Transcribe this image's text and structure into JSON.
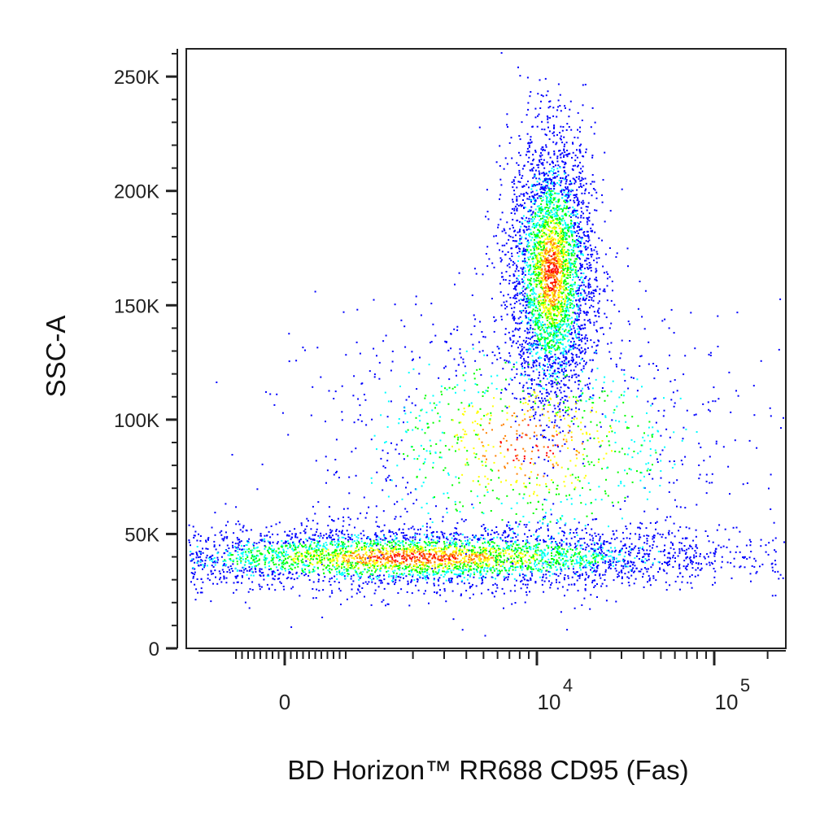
{
  "chart_data": {
    "type": "scatter",
    "title": "",
    "xlabel": "BD Horizon™ RR688 CD95 (Fas)",
    "ylabel": "SSC-A",
    "xscale": "biexponential",
    "ylim": [
      0,
      262144
    ],
    "yticks": [
      {
        "value": 0,
        "label": "0"
      },
      {
        "value": 50000,
        "label": "50K"
      },
      {
        "value": 100000,
        "label": "100K"
      },
      {
        "value": 150000,
        "label": "150K"
      },
      {
        "value": 200000,
        "label": "200K"
      },
      {
        "value": 250000,
        "label": "250K"
      }
    ],
    "xticks": [
      {
        "value": 0,
        "base": "0",
        "exp": ""
      },
      {
        "value": 10000,
        "base": "10",
        "exp": "4"
      },
      {
        "value": 100000,
        "base": "10",
        "exp": "5"
      }
    ],
    "density_colors": [
      "#0000ff",
      "#00ffff",
      "#00ff00",
      "#ffff00",
      "#ff8000",
      "#ff0000"
    ],
    "populations": [
      {
        "name": "",
        "x_center": 2000,
        "x_spread_decades": 0.9,
        "y_center": 40000,
        "y_spread": 6500,
        "relative_count": 0.45
      },
      {
        "name": "",
        "x_center": 12000,
        "x_spread_decades": 0.12,
        "y_center": 165000,
        "y_spread": 30000,
        "relative_count": 0.4
      },
      {
        "name": "",
        "x_center": 9000,
        "x_spread_decades": 0.6,
        "y_center": 90000,
        "y_spread": 30000,
        "relative_count": 0.15
      }
    ]
  }
}
